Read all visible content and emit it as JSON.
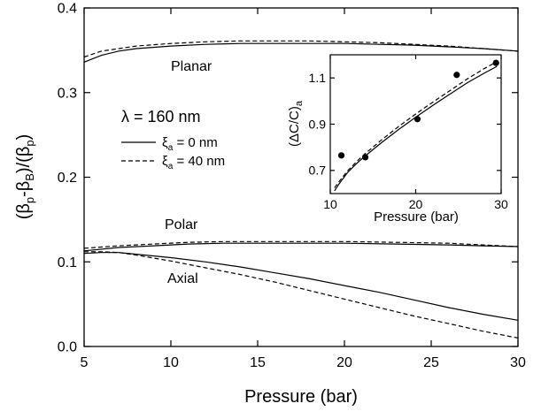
{
  "chart_data": [
    {
      "type": "line",
      "xlabel": "Pressure (bar)",
      "ylabel": [
        "(β",
        "p",
        "-β",
        "B",
        ")/(β",
        "p",
        ")"
      ],
      "xlim": [
        5,
        30
      ],
      "ylim": [
        0.0,
        0.4
      ],
      "xticks": [
        5,
        10,
        15,
        20,
        25,
        30
      ],
      "yticks": [
        0.0,
        0.1,
        0.2,
        0.3,
        0.4
      ],
      "xtick_labels": [
        "5",
        "10",
        "15",
        "20",
        "25",
        "30"
      ],
      "ytick_labels": [
        "0.0",
        "0.1",
        "0.2",
        "0.3",
        "0.4"
      ],
      "grid": false,
      "annotations": {
        "lambda_label": "λ = 160 nm",
        "legend": [
          {
            "symbol": "ξ",
            "sub": "a",
            "rest": " = 0 nm",
            "style": "solid"
          },
          {
            "symbol": "ξ",
            "sub": "a",
            "rest": " = 40 nm",
            "style": "dashed"
          }
        ],
        "curve_labels": {
          "planar": "Planar",
          "polar": "Polar",
          "axial": "Axial"
        }
      },
      "series": [
        {
          "group": "Planar",
          "style": "solid",
          "x": [
            5,
            6,
            7,
            8,
            10,
            12,
            14,
            16,
            18,
            20,
            22,
            24,
            26,
            28,
            30
          ],
          "y": [
            0.336,
            0.344,
            0.349,
            0.352,
            0.355,
            0.357,
            0.358,
            0.358,
            0.358,
            0.358,
            0.357,
            0.356,
            0.354,
            0.352,
            0.349
          ]
        },
        {
          "group": "Planar",
          "style": "dashed",
          "x": [
            5,
            6,
            7,
            8,
            10,
            12,
            14,
            16,
            18,
            20,
            22,
            24,
            26,
            28,
            30
          ],
          "y": [
            0.342,
            0.349,
            0.352,
            0.355,
            0.358,
            0.36,
            0.361,
            0.361,
            0.361,
            0.36,
            0.359,
            0.357,
            0.355,
            0.352,
            0.349
          ]
        },
        {
          "group": "Polar",
          "style": "solid",
          "x": [
            5,
            7,
            9,
            11,
            13,
            15,
            17,
            20,
            23,
            26,
            28,
            30
          ],
          "y": [
            0.113,
            0.117,
            0.119,
            0.121,
            0.122,
            0.122,
            0.122,
            0.122,
            0.121,
            0.12,
            0.119,
            0.118
          ]
        },
        {
          "group": "Polar",
          "style": "dashed",
          "x": [
            5,
            7,
            9,
            11,
            13,
            15,
            17,
            20,
            23,
            26,
            28,
            30
          ],
          "y": [
            0.116,
            0.119,
            0.121,
            0.123,
            0.124,
            0.124,
            0.124,
            0.124,
            0.123,
            0.122,
            0.12,
            0.118
          ]
        },
        {
          "group": "Axial",
          "style": "solid",
          "x": [
            5,
            6,
            7,
            8,
            10,
            12,
            14,
            16,
            18,
            20,
            22,
            24,
            26,
            28,
            30
          ],
          "y": [
            0.11,
            0.111,
            0.111,
            0.109,
            0.105,
            0.1,
            0.094,
            0.087,
            0.08,
            0.072,
            0.064,
            0.055,
            0.046,
            0.038,
            0.031
          ]
        },
        {
          "group": "Axial",
          "style": "dashed",
          "x": [
            5,
            6,
            7,
            8,
            10,
            12,
            14,
            16,
            18,
            20,
            22,
            24,
            26,
            28,
            30
          ],
          "y": [
            0.112,
            0.112,
            0.111,
            0.108,
            0.101,
            0.093,
            0.085,
            0.076,
            0.066,
            0.056,
            0.046,
            0.036,
            0.027,
            0.018,
            0.01
          ]
        }
      ]
    },
    {
      "type": "scatter",
      "xlabel": "Pressure (bar)",
      "ylabel": [
        "(ΔC/C)",
        "a"
      ],
      "xlim": [
        10,
        30
      ],
      "ylim": [
        0.6,
        1.2
      ],
      "xticks": [
        10,
        20,
        30
      ],
      "yticks": [
        0.7,
        0.9,
        1.1
      ],
      "xtick_labels": [
        "10",
        "20",
        "30"
      ],
      "ytick_labels": [
        "0.7",
        "0.9",
        "1.1"
      ],
      "grid": false,
      "points": {
        "x": [
          11.3,
          14.1,
          20.2,
          24.8,
          29.4
        ],
        "y": [
          0.765,
          0.757,
          0.922,
          1.113,
          1.165
        ]
      },
      "series": [
        {
          "style": "solid",
          "x": [
            10.5,
            11,
            12,
            13,
            14,
            16,
            18,
            20,
            22,
            24,
            26,
            28,
            29.5
          ],
          "y": [
            0.612,
            0.64,
            0.69,
            0.727,
            0.76,
            0.82,
            0.877,
            0.93,
            0.981,
            1.03,
            1.078,
            1.12,
            1.15
          ]
        },
        {
          "style": "dashed",
          "x": [
            10.5,
            11,
            12,
            13,
            14,
            16,
            18,
            20,
            22,
            24,
            26,
            28,
            29.5
          ],
          "y": [
            0.625,
            0.65,
            0.697,
            0.735,
            0.77,
            0.832,
            0.89,
            0.944,
            0.995,
            1.045,
            1.095,
            1.14,
            1.17
          ]
        }
      ]
    }
  ]
}
